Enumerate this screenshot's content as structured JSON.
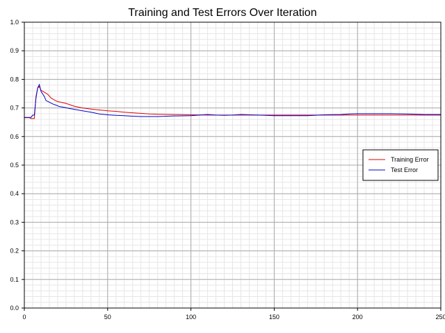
{
  "chart_data": {
    "type": "line",
    "title": "Training and Test Errors Over Iteration",
    "xlabel": "",
    "ylabel": "",
    "xlim": [
      0,
      250
    ],
    "ylim": [
      0.0,
      1.0
    ],
    "xticks": [
      0,
      50,
      100,
      150,
      200,
      250
    ],
    "xtick_labels": [
      "0",
      "50",
      "100",
      "150",
      "200",
      "250"
    ],
    "yticks": [
      0.0,
      0.1,
      0.2,
      0.3,
      0.4,
      0.5,
      0.6,
      0.7,
      0.8,
      0.9,
      1.0
    ],
    "ytick_labels": [
      "0.0",
      "0.1",
      "0.2",
      "0.3",
      "0.4",
      "0.5",
      "0.6",
      "0.7",
      "0.8",
      "0.9",
      "1.0"
    ],
    "grid": true,
    "legend_position": "right",
    "series": [
      {
        "name": "Training Error",
        "color": "#e00000",
        "points": [
          [
            0,
            0.666
          ],
          [
            3,
            0.666
          ],
          [
            4,
            0.663
          ],
          [
            6,
            0.663
          ],
          [
            7,
            0.74
          ],
          [
            8,
            0.77
          ],
          [
            9,
            0.775
          ],
          [
            10,
            0.762
          ],
          [
            12,
            0.755
          ],
          [
            14,
            0.748
          ],
          [
            16,
            0.735
          ],
          [
            18,
            0.728
          ],
          [
            20,
            0.722
          ],
          [
            22,
            0.72
          ],
          [
            25,
            0.716
          ],
          [
            28,
            0.71
          ],
          [
            30,
            0.706
          ],
          [
            35,
            0.7
          ],
          [
            40,
            0.696
          ],
          [
            45,
            0.693
          ],
          [
            50,
            0.69
          ],
          [
            55,
            0.688
          ],
          [
            60,
            0.685
          ],
          [
            65,
            0.683
          ],
          [
            70,
            0.681
          ],
          [
            75,
            0.679
          ],
          [
            80,
            0.678
          ],
          [
            90,
            0.677
          ],
          [
            100,
            0.676
          ],
          [
            110,
            0.675
          ],
          [
            120,
            0.675
          ],
          [
            140,
            0.675
          ],
          [
            160,
            0.675
          ],
          [
            180,
            0.675
          ],
          [
            200,
            0.675
          ],
          [
            220,
            0.675
          ],
          [
            250,
            0.675
          ]
        ]
      },
      {
        "name": "Test Error",
        "color": "#0000cc",
        "points": [
          [
            0,
            0.667
          ],
          [
            3,
            0.667
          ],
          [
            4,
            0.667
          ],
          [
            5,
            0.675
          ],
          [
            6,
            0.675
          ],
          [
            7,
            0.735
          ],
          [
            8,
            0.77
          ],
          [
            9,
            0.782
          ],
          [
            10,
            0.758
          ],
          [
            12,
            0.74
          ],
          [
            13,
            0.726
          ],
          [
            15,
            0.72
          ],
          [
            17,
            0.714
          ],
          [
            19,
            0.71
          ],
          [
            21,
            0.705
          ],
          [
            24,
            0.702
          ],
          [
            27,
            0.698
          ],
          [
            30,
            0.695
          ],
          [
            35,
            0.69
          ],
          [
            40,
            0.685
          ],
          [
            45,
            0.679
          ],
          [
            50,
            0.676
          ],
          [
            55,
            0.674
          ],
          [
            60,
            0.673
          ],
          [
            65,
            0.671
          ],
          [
            70,
            0.67
          ],
          [
            80,
            0.67
          ],
          [
            90,
            0.672
          ],
          [
            100,
            0.673
          ],
          [
            105,
            0.675
          ],
          [
            110,
            0.677
          ],
          [
            115,
            0.675
          ],
          [
            120,
            0.674
          ],
          [
            125,
            0.675
          ],
          [
            130,
            0.677
          ],
          [
            140,
            0.675
          ],
          [
            150,
            0.673
          ],
          [
            160,
            0.673
          ],
          [
            170,
            0.673
          ],
          [
            180,
            0.676
          ],
          [
            190,
            0.677
          ],
          [
            195,
            0.679
          ],
          [
            200,
            0.68
          ],
          [
            210,
            0.68
          ],
          [
            220,
            0.68
          ],
          [
            230,
            0.679
          ],
          [
            240,
            0.677
          ],
          [
            250,
            0.677
          ]
        ]
      }
    ]
  }
}
